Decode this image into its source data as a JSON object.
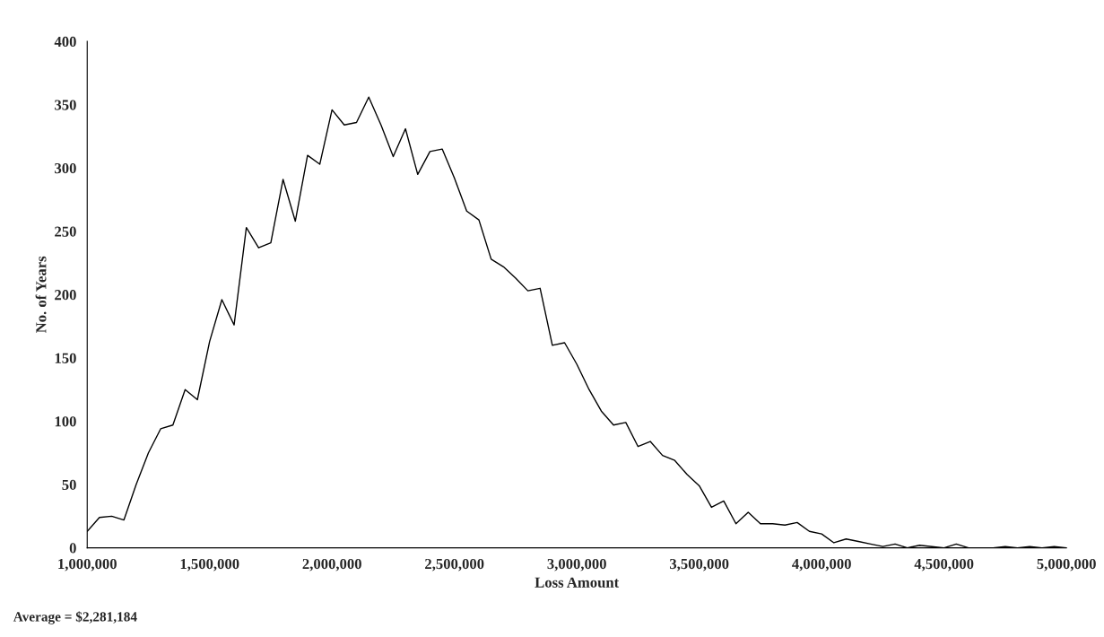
{
  "chart_data": {
    "type": "line",
    "xlabel": "Loss Amount",
    "ylabel": "No. of Years",
    "annotations": [
      "Average = $2,281,184"
    ],
    "x": [
      1000000,
      1050000,
      1100000,
      1150000,
      1200000,
      1250000,
      1300000,
      1350000,
      1400000,
      1450000,
      1500000,
      1550000,
      1600000,
      1650000,
      1700000,
      1750000,
      1800000,
      1850000,
      1900000,
      1950000,
      2000000,
      2050000,
      2100000,
      2150000,
      2200000,
      2250000,
      2300000,
      2350000,
      2400000,
      2450000,
      2500000,
      2550000,
      2600000,
      2650000,
      2700000,
      2750000,
      2800000,
      2850000,
      2900000,
      2950000,
      3000000,
      3050000,
      3100000,
      3150000,
      3200000,
      3250000,
      3300000,
      3350000,
      3400000,
      3450000,
      3500000,
      3550000,
      3600000,
      3650000,
      3700000,
      3750000,
      3800000,
      3850000,
      3900000,
      3950000,
      4000000,
      4050000,
      4100000,
      4150000,
      4200000,
      4250000,
      4300000,
      4350000,
      4400000,
      4450000,
      4500000,
      4550000,
      4600000,
      4650000,
      4700000,
      4750000,
      4800000,
      4850000,
      4900000,
      4950000,
      5000000
    ],
    "series": [
      {
        "color": "#000000",
        "values": [
          13,
          24,
          25,
          22,
          50,
          75,
          94,
          97,
          125,
          117,
          163,
          196,
          176,
          253,
          237,
          241,
          291,
          258,
          310,
          303,
          346,
          334,
          336,
          356,
          334,
          309,
          331,
          295,
          313,
          315,
          292,
          266,
          259,
          228,
          222,
          213,
          203,
          205,
          160,
          162,
          145,
          125,
          108,
          97,
          99,
          80,
          84,
          73,
          69,
          58,
          49,
          32,
          37,
          19,
          28,
          19,
          19,
          18,
          20,
          13,
          11,
          4,
          7,
          5,
          3,
          1,
          3,
          0,
          2,
          1,
          0,
          3,
          0,
          0,
          0,
          1,
          0,
          1,
          0,
          1,
          0
        ]
      }
    ],
    "xlim": [
      1000000,
      5000000
    ],
    "xticks": [
      {
        "value": 1000000,
        "label": "1,000,000"
      },
      {
        "value": 1500000,
        "label": "1,500,000"
      },
      {
        "value": 2000000,
        "label": "2,000,000"
      },
      {
        "value": 2500000,
        "label": "2,500,000"
      },
      {
        "value": 3000000,
        "label": "3,000,000"
      },
      {
        "value": 3500000,
        "label": "3,500,000"
      },
      {
        "value": 4000000,
        "label": "4,000,000"
      },
      {
        "value": 4500000,
        "label": "4,500,000"
      },
      {
        "value": 5000000,
        "label": "5,000,000"
      }
    ],
    "ylim": [
      0,
      400
    ],
    "yticks": [
      0,
      50,
      100,
      150,
      200,
      250,
      300,
      350,
      400
    ],
    "grid": false,
    "legend": false,
    "marker": "none",
    "line_style": "solid"
  }
}
